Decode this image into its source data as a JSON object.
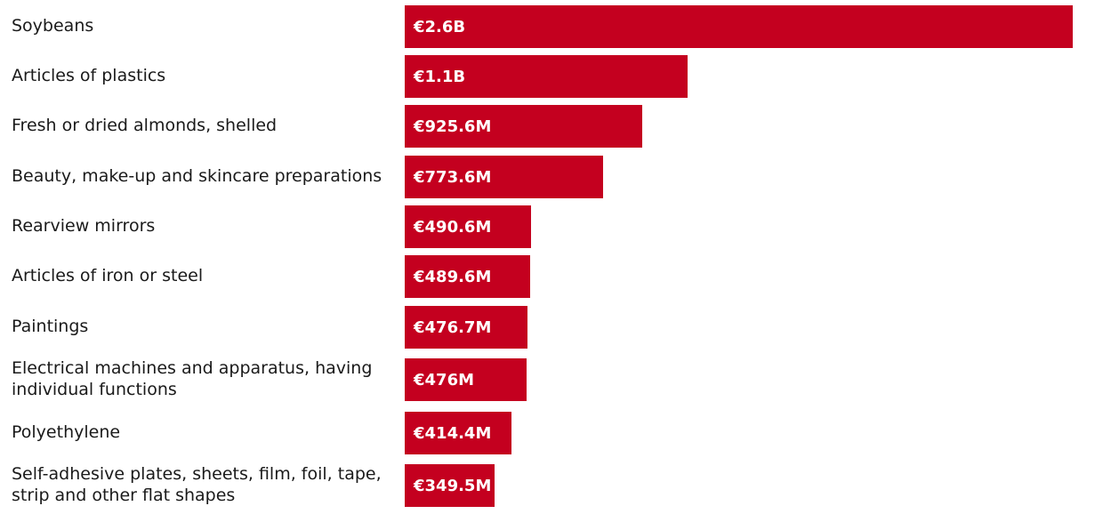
{
  "colors": {
    "bar": "#c4001f",
    "label_text": "#1a1a1a",
    "value_text": "#ffffff"
  },
  "chart_data": {
    "type": "bar",
    "orientation": "horizontal",
    "title": "",
    "xlabel": "",
    "ylabel": "",
    "grid": false,
    "legend": "none",
    "categories": [
      "Soybeans",
      "Articles of plastics",
      "Fresh or dried almonds, shelled",
      "Beauty, make-up and skincare preparations",
      "Rearview mirrors",
      "Articles of iron or steel",
      "Paintings",
      "Electrical machines and apparatus, having\nindividual functions",
      "Polyethylene",
      "Self-adhesive plates, sheets, film, foil, tape,\nstrip and other flat shapes"
    ],
    "values": [
      2600,
      1100,
      925.6,
      773.6,
      490.6,
      489.6,
      476.7,
      476,
      414.4,
      349.5
    ],
    "value_unit": "EUR millions",
    "value_labels": [
      "€2.6B",
      "€1.1B",
      "€925.6M",
      "€773.6M",
      "€490.6M",
      "€489.6M",
      "€476.7M",
      "€476M",
      "€414.4M",
      "€349.5M"
    ]
  }
}
